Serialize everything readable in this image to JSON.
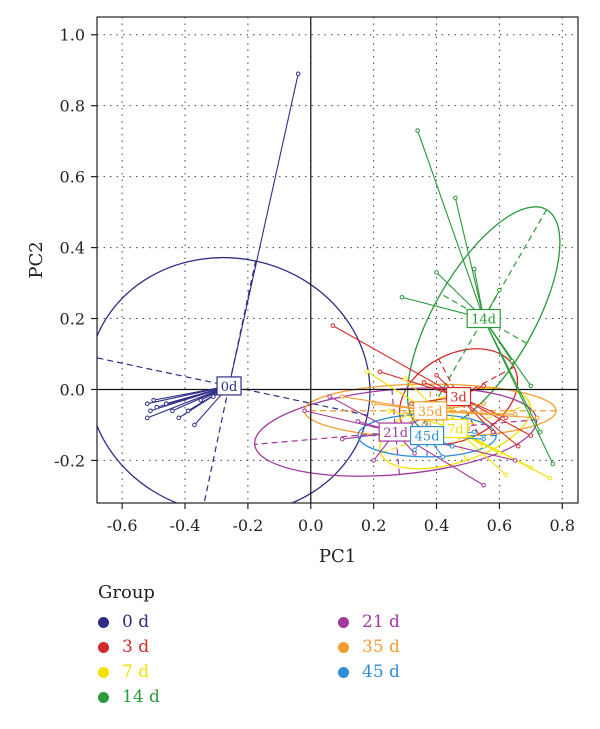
{
  "chart_data": {
    "type": "scatter",
    "xlabel": "PC1",
    "ylabel": "PC2",
    "xlim": [
      -0.68,
      0.85
    ],
    "ylim": [
      -0.32,
      1.05
    ],
    "xticks": [
      "-0.6",
      "-0.4",
      "-0.2",
      "0.0",
      "0.2",
      "0.4",
      "0.6",
      "0.8"
    ],
    "xtick_values": [
      -0.6,
      -0.4,
      -0.2,
      0.0,
      0.2,
      0.4,
      0.6,
      0.8
    ],
    "yticks": [
      "-0.2",
      "0.0",
      "0.2",
      "0.4",
      "0.6",
      "0.8",
      "1.0"
    ],
    "ytick_values": [
      -0.2,
      0.0,
      0.2,
      0.4,
      0.6,
      0.8,
      1.0
    ],
    "grid": true,
    "legend_title": "Group",
    "groups": [
      {
        "name": "0 d",
        "label": "0d",
        "color": "#2e2e86",
        "centroid": [
          -0.26,
          0.01
        ],
        "ellipse": {
          "rx": 0.45,
          "ry": 0.36,
          "angle": 12
        },
        "points": [
          [
            -0.04,
            0.89
          ],
          [
            -0.52,
            -0.04
          ],
          [
            -0.51,
            -0.06
          ],
          [
            -0.49,
            -0.05
          ],
          [
            -0.46,
            -0.04
          ],
          [
            -0.44,
            -0.06
          ],
          [
            -0.42,
            -0.08
          ],
          [
            -0.39,
            -0.06
          ],
          [
            -0.37,
            -0.1
          ],
          [
            -0.35,
            -0.03
          ],
          [
            -0.52,
            -0.08
          ],
          [
            -0.5,
            -0.03
          ],
          [
            -0.31,
            -0.02
          ],
          [
            -0.29,
            -0.01
          ]
        ]
      },
      {
        "name": "3 d",
        "label": "3d",
        "color": "#d42a2a",
        "centroid": [
          0.47,
          -0.02
        ],
        "ellipse": {
          "rx": 0.2,
          "ry": 0.12,
          "angle": -28
        },
        "points": [
          [
            0.07,
            0.18
          ],
          [
            0.22,
            0.05
          ],
          [
            0.36,
            0.02
          ],
          [
            0.55,
            0.01
          ],
          [
            0.62,
            -0.08
          ],
          [
            0.66,
            -0.16
          ],
          [
            0.7,
            -0.13
          ],
          [
            0.58,
            -0.12
          ],
          [
            0.32,
            -0.04
          ],
          [
            0.4,
            0.04
          ]
        ]
      },
      {
        "name": "7 d",
        "label": "7d",
        "color": "#f2e200",
        "centroid": [
          0.46,
          -0.11
        ],
        "ellipse": {
          "rx": 0.25,
          "ry": 0.095,
          "angle": -18
        },
        "points": [
          [
            0.18,
            0.05
          ],
          [
            0.3,
            0.03
          ],
          [
            0.44,
            -0.02
          ],
          [
            0.6,
            -0.18
          ],
          [
            0.7,
            -0.22
          ],
          [
            0.76,
            -0.25
          ],
          [
            0.62,
            -0.24
          ],
          [
            0.55,
            -0.16
          ],
          [
            0.34,
            -0.08
          ],
          [
            0.25,
            -0.06
          ]
        ]
      },
      {
        "name": "14 d",
        "label": "14d",
        "color": "#2a9a3a",
        "centroid": [
          0.55,
          0.2
        ],
        "ellipse": {
          "rx": 0.4,
          "ry": 0.14,
          "angle": -60
        },
        "points": [
          [
            0.34,
            0.73
          ],
          [
            0.46,
            0.54
          ],
          [
            0.29,
            0.26
          ],
          [
            0.4,
            0.33
          ],
          [
            0.7,
            0.01
          ],
          [
            0.73,
            -0.12
          ],
          [
            0.77,
            -0.21
          ],
          [
            0.64,
            0.08
          ],
          [
            0.52,
            0.34
          ],
          [
            0.6,
            0.28
          ]
        ]
      },
      {
        "name": "21 d",
        "label": "21d",
        "color": "#a23a9e",
        "centroid": [
          0.27,
          -0.12
        ],
        "ellipse": {
          "rx": 0.45,
          "ry": 0.12,
          "angle": -5
        },
        "points": [
          [
            0.06,
            -0.02
          ],
          [
            -0.02,
            -0.06
          ],
          [
            0.1,
            -0.14
          ],
          [
            0.2,
            -0.2
          ],
          [
            0.33,
            -0.18
          ],
          [
            0.45,
            -0.16
          ],
          [
            0.55,
            -0.27
          ],
          [
            0.65,
            -0.2
          ],
          [
            0.4,
            -0.06
          ],
          [
            0.15,
            -0.09
          ]
        ]
      },
      {
        "name": "35 d",
        "label": "35d",
        "color": "#f29d2e",
        "centroid": [
          0.38,
          -0.06
        ],
        "ellipse": {
          "rx": 0.4,
          "ry": 0.075,
          "angle": 0
        },
        "points": [
          [
            0.1,
            -0.02
          ],
          [
            0.2,
            -0.04
          ],
          [
            0.3,
            -0.07
          ],
          [
            0.45,
            -0.05
          ],
          [
            0.55,
            -0.04
          ],
          [
            0.65,
            -0.07
          ],
          [
            0.72,
            -0.08
          ],
          [
            0.36,
            -0.1
          ],
          [
            0.26,
            -0.12
          ],
          [
            0.5,
            -0.11
          ]
        ]
      },
      {
        "name": "45 d",
        "label": "45d",
        "color": "#2e8fd6",
        "centroid": [
          0.37,
          -0.13
        ],
        "ellipse": {
          "rx": 0.22,
          "ry": 0.06,
          "angle": 0
        },
        "points": [
          [
            0.3,
            -0.1
          ],
          [
            0.38,
            -0.12
          ],
          [
            0.45,
            -0.16
          ],
          [
            0.52,
            -0.12
          ],
          [
            0.55,
            -0.14
          ],
          [
            0.48,
            -0.09
          ],
          [
            0.33,
            -0.17
          ],
          [
            0.42,
            -0.19
          ],
          [
            0.46,
            -0.1
          ],
          [
            0.28,
            -0.14
          ]
        ]
      }
    ]
  }
}
